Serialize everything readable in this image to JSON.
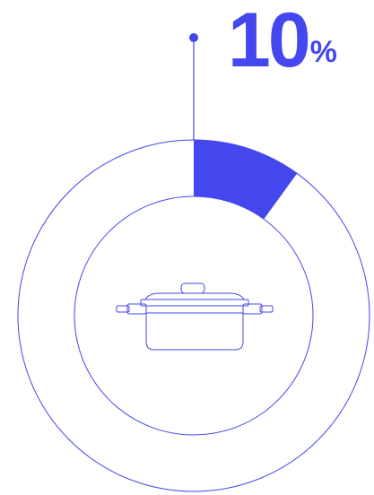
{
  "colors": {
    "accent": "#4446ee",
    "outline": "#4446ee",
    "background": "#ffffff"
  },
  "percentage": {
    "value": "10",
    "unit": "%"
  },
  "chart_data": {
    "type": "pie",
    "variant": "donut",
    "values": [
      10,
      90
    ],
    "highlighted_value": 10,
    "center_icon": "cooking-pot-icon"
  }
}
